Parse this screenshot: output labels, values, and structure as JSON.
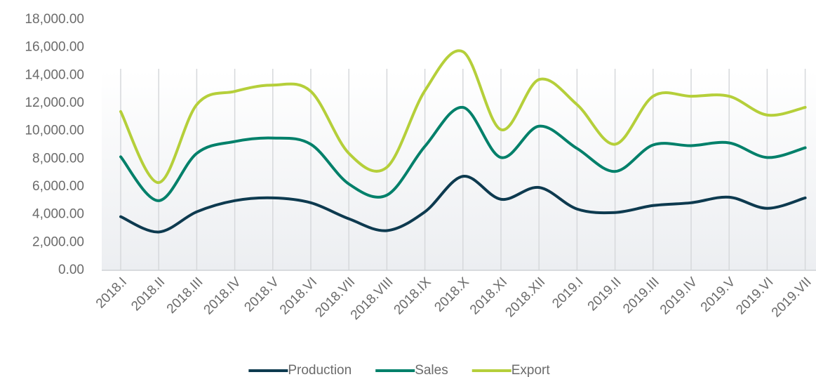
{
  "chart_data": {
    "type": "line",
    "categories": [
      "2018.I",
      "2018.II",
      "2018.III",
      "2018.IV",
      "2018.V",
      "2018.VI",
      "2018.VII",
      "2018.VIII",
      "2018.IX",
      "2018.X",
      "2018.XI",
      "2018.XII",
      "2019.I",
      "2019.II",
      "2019.III",
      "2019.IV",
      "2019.V",
      "2019.VI",
      "2019.VII"
    ],
    "series": [
      {
        "name": "Production",
        "color": "#0d3a4f",
        "values": [
          3850,
          2750,
          4200,
          5000,
          5200,
          4850,
          3700,
          2850,
          4200,
          6750,
          5100,
          5950,
          4400,
          4150,
          4650,
          4850,
          5250,
          4450,
          5200
        ]
      },
      {
        "name": "Sales",
        "color": "#00806a",
        "values": [
          8150,
          5000,
          8400,
          9250,
          9500,
          9050,
          6200,
          5400,
          8900,
          11700,
          8100,
          10350,
          8750,
          7100,
          9000,
          8950,
          9150,
          8100,
          8800
        ]
      },
      {
        "name": "Export",
        "color": "#b5cf3a",
        "values": [
          11400,
          6300,
          11900,
          12850,
          13300,
          12850,
          8400,
          7400,
          12900,
          15700,
          10100,
          13700,
          11900,
          9050,
          12500,
          12500,
          12500,
          11150,
          11700
        ]
      }
    ],
    "ylim": [
      0,
      18000
    ],
    "yticks": [
      {
        "value": 0,
        "label": "0.00"
      },
      {
        "value": 2000,
        "label": "2,000.00"
      },
      {
        "value": 4000,
        "label": "4,000.00"
      },
      {
        "value": 6000,
        "label": "6,000.00"
      },
      {
        "value": 8000,
        "label": "8,000.00"
      },
      {
        "value": 10000,
        "label": "10,000.00"
      },
      {
        "value": 12000,
        "label": "12,000.00"
      },
      {
        "value": 14000,
        "label": "14,000.00"
      },
      {
        "value": 16000,
        "label": "16,000.00"
      },
      {
        "value": 18000,
        "label": "18,000.00"
      }
    ],
    "grid": true,
    "legend": "bottom"
  }
}
